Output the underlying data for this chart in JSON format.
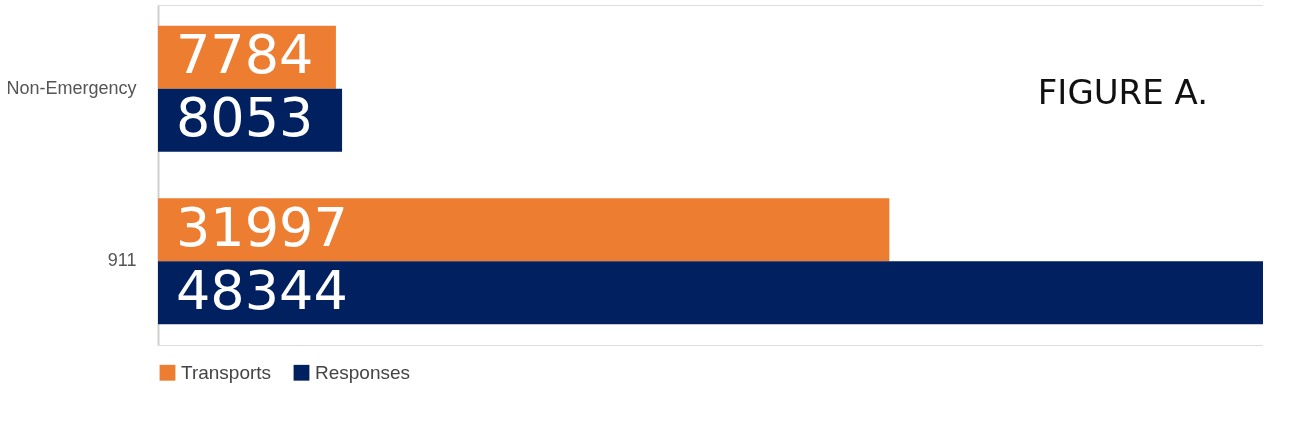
{
  "chart_data": {
    "type": "bar",
    "orientation": "horizontal",
    "title": "FIGURE A.",
    "categories": [
      "Non-Emergency",
      "911"
    ],
    "series": [
      {
        "name": "Transports",
        "color": "#ed7d31",
        "values": [
          7784,
          31997
        ]
      },
      {
        "name": "Responses",
        "color": "#002060",
        "values": [
          8053,
          48344
        ]
      }
    ],
    "xlim": [
      0,
      48344
    ],
    "tick_labels": "y",
    "data_labels": true,
    "grid": false,
    "legend": "bottom"
  }
}
